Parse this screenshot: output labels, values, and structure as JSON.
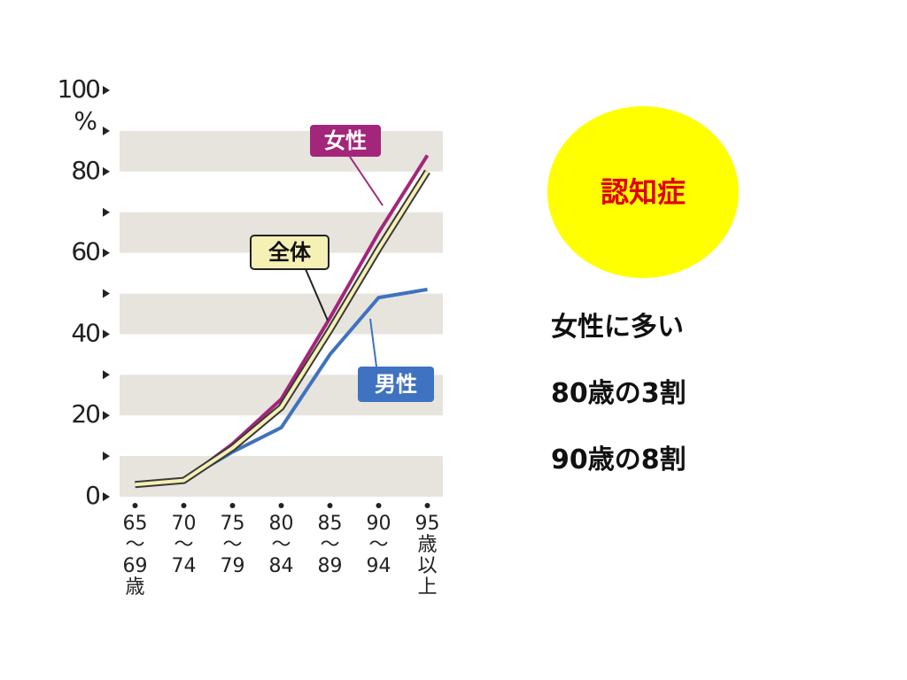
{
  "chart_data": {
    "type": "line",
    "categories": [
      "65\n〜\n69\n歳",
      "70\n〜\n74",
      "75\n〜\n79",
      "80\n〜\n84",
      "85\n〜\n89",
      "90\n〜\n94",
      "95\n歳\n以上"
    ],
    "series": [
      {
        "name": "女性",
        "color": "#a3267a",
        "values": [
          3,
          4,
          13,
          24,
          44,
          65,
          84
        ]
      },
      {
        "name": "全体",
        "color": "#f5f0b4",
        "values": [
          3,
          4,
          12,
          22,
          41,
          61,
          80
        ]
      },
      {
        "name": "男性",
        "color": "#3f72c0",
        "values": [
          3,
          4,
          11,
          17,
          35,
          49,
          51
        ]
      }
    ],
    "ylim": [
      0,
      100
    ],
    "yticks": [
      0,
      20,
      40,
      60,
      80,
      100
    ],
    "minor_yticks": [
      10,
      30,
      50,
      70,
      90
    ],
    "y_unit": "%",
    "band_color": "#e6e4dc"
  },
  "badge": "認知症",
  "points": [
    "女性に多い",
    "80歳の3割",
    "90歳の8割"
  ]
}
